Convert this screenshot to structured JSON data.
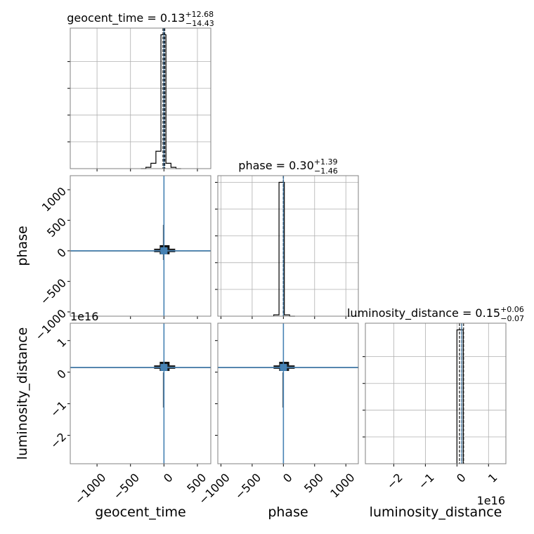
{
  "chart_data": {
    "type": "corner-plot",
    "parameters": [
      "geocent_time",
      "phase",
      "luminosity_distance"
    ],
    "colors": {
      "contour": "#4682b4",
      "hist": "#000000",
      "grid": "#b0b0b0",
      "truth": "#4682b4"
    },
    "grid": true,
    "diagonal": [
      {
        "param": "geocent_time",
        "title_main": "geocent_time = 0.13",
        "title_sup": "+12.68",
        "title_sub": "−14.43",
        "xlim": [
          -1400,
          700
        ],
        "ylim": [
          0,
          1.05
        ],
        "quantiles": [
          -14.3,
          0.13,
          12.81
        ],
        "bin_edges": [
          -345,
          -270,
          -195,
          -120,
          -45,
          30,
          105,
          180,
          255
        ],
        "counts": [
          0.0,
          0.01,
          0.04,
          0.13,
          1.0,
          0.04,
          0.01,
          0.0
        ],
        "y_ticks": [
          0.2,
          0.4,
          0.6,
          0.8
        ]
      },
      {
        "param": "phase",
        "title_main": "phase = 0.30",
        "title_sup": "+1.39",
        "title_sub": "−1.46",
        "xlim": [
          -1050,
          1200
        ],
        "ylim": [
          0,
          1.05
        ],
        "quantiles": [
          -1.16,
          0.3,
          1.69
        ],
        "bin_edges": [
          -155,
          -70,
          15,
          100,
          185
        ],
        "counts": [
          0.01,
          1.0,
          0.01,
          0.0
        ],
        "y_ticks": [
          0.2,
          0.4,
          0.6,
          0.8,
          1.0
        ]
      },
      {
        "param": "luminosity_distance",
        "title_main": "luminosity_distance = 0.15",
        "title_sup": "+0.06",
        "title_sub": "−0.07",
        "xlim": [
          -2.9,
          1.55
        ],
        "ylim": [
          0,
          1.05
        ],
        "quantiles": [
          0.08,
          0.15,
          0.21
        ],
        "bin_edges": [
          0.0,
          0.2
        ],
        "counts": [
          1.0
        ],
        "y_ticks": [
          0.2,
          0.4,
          0.6,
          0.8
        ]
      }
    ],
    "scatter_panels": [
      {
        "x": "geocent_time",
        "y": "phase",
        "truth": [
          0.13,
          0.3
        ]
      },
      {
        "x": "geocent_time",
        "y": "luminosity_distance",
        "truth": [
          0.13,
          0.15
        ]
      },
      {
        "x": "phase",
        "y": "luminosity_distance",
        "truth": [
          0.3,
          0.15
        ]
      }
    ],
    "axes": {
      "geocent_time": {
        "label": "geocent_time",
        "range": [
          -1400,
          700
        ],
        "ticks": [
          -1000,
          -500,
          0,
          500
        ],
        "tick_labels": [
          "−1000",
          "−500",
          "0",
          "500"
        ],
        "offset": ""
      },
      "phase": {
        "label": "phase",
        "range_x": [
          -1050,
          1200
        ],
        "range_y": [
          -1070,
          1230
        ],
        "ticks_x": [
          -1000,
          -500,
          0,
          500,
          1000
        ],
        "tick_labels_x": [
          "−1000",
          "−500",
          "0",
          "500",
          "1000"
        ],
        "ticks_y": [
          -1000,
          -500,
          0,
          500,
          1000
        ],
        "tick_labels_y": [
          "−1000",
          "−500",
          "0",
          "500",
          "1000"
        ],
        "offset": ""
      },
      "luminosity_distance": {
        "label": "luminosity_distance",
        "range_x": [
          -2.9,
          1.55
        ],
        "range_y": [
          -2.9,
          1.55
        ],
        "ticks": [
          -2,
          -1,
          0,
          1
        ],
        "tick_labels": [
          "−2",
          "−1",
          "0",
          "1"
        ],
        "offset": "1e16"
      }
    }
  }
}
